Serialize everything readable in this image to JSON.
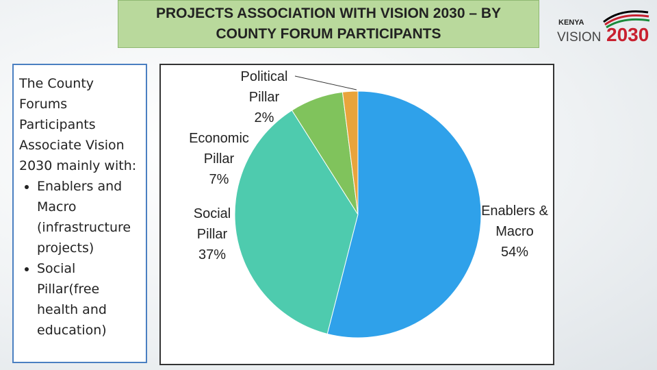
{
  "header": {
    "title": "PROJECTS ASSOCIATION WITH VISION 2030 – BY COUNTY FORUM PARTICIPANTS"
  },
  "logo": {
    "country": "KENYA",
    "word": "VISION",
    "year": "2030"
  },
  "sidebar": {
    "intro": "The County Forums Participants Associate Vision 2030 mainly with:",
    "bullets": [
      "Enablers and Macro (infrastructure projects)",
      "Social Pillar(free health and education)"
    ]
  },
  "chart_data": {
    "type": "pie",
    "categories": [
      "Enablers & Macro",
      "Social Pillar",
      "Economic Pillar",
      "Political Pillar"
    ],
    "values": [
      54,
      37,
      7,
      2
    ],
    "value_labels": [
      "54%",
      "37%",
      "7%",
      "2%"
    ],
    "colors": [
      "#2fa1ea",
      "#4ecbae",
      "#80c35c",
      "#e9a43c"
    ]
  }
}
